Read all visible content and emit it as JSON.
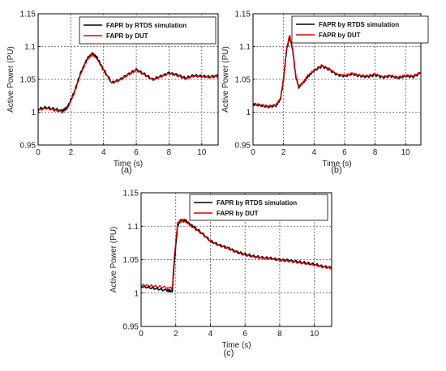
{
  "chart_data": [
    {
      "type": "line",
      "caption": "(a)",
      "xlabel": "Time (s)",
      "ylabel": "Active Power (PU)",
      "xlim": [
        0,
        11
      ],
      "ylim": [
        0.95,
        1.15
      ],
      "xticks": [
        "0",
        "2",
        "4",
        "6",
        "8",
        "10"
      ],
      "yticks": [
        "0.95",
        "1",
        "1.05",
        "1.1",
        "1.15"
      ],
      "grid": true,
      "legend_position": "top-right",
      "series": [
        {
          "name": "FAPR by RTDS simulation",
          "color": "#000000",
          "x": [
            0,
            0.5,
            1,
            1.5,
            1.8,
            2.2,
            2.6,
            3.0,
            3.3,
            3.6,
            4.0,
            4.5,
            5.0,
            5.5,
            6.0,
            6.5,
            7.0,
            7.5,
            8.0,
            8.5,
            9.0,
            9.5,
            10.0,
            10.5,
            11
          ],
          "y": [
            1.005,
            1.007,
            1.005,
            1.002,
            1.008,
            1.03,
            1.06,
            1.082,
            1.09,
            1.083,
            1.065,
            1.045,
            1.05,
            1.058,
            1.065,
            1.058,
            1.05,
            1.055,
            1.06,
            1.057,
            1.052,
            1.056,
            1.055,
            1.054,
            1.056
          ]
        },
        {
          "name": "FAPR by DUT",
          "color": "#e00000",
          "x": [
            0,
            0.5,
            1,
            1.5,
            1.8,
            2.2,
            2.6,
            3.0,
            3.3,
            3.6,
            4.0,
            4.5,
            5.0,
            5.5,
            6.0,
            6.5,
            7.0,
            7.5,
            8.0,
            8.5,
            9.0,
            9.5,
            10.0,
            10.5,
            11
          ],
          "y": [
            1.003,
            1.006,
            1.003,
            1.0,
            1.006,
            1.028,
            1.058,
            1.08,
            1.088,
            1.081,
            1.063,
            1.044,
            1.049,
            1.057,
            1.064,
            1.057,
            1.049,
            1.054,
            1.059,
            1.056,
            1.051,
            1.055,
            1.054,
            1.053,
            1.055
          ]
        }
      ]
    },
    {
      "type": "line",
      "caption": "(b)",
      "xlabel": "Time (s)",
      "ylabel": "Active Power (PU)",
      "xlim": [
        0,
        11
      ],
      "ylim": [
        0.95,
        1.15
      ],
      "xticks": [
        "0",
        "2",
        "4",
        "6",
        "8",
        "10"
      ],
      "yticks": [
        "0.95",
        "1",
        "1.05",
        "1.1",
        "1.15"
      ],
      "grid": true,
      "legend_position": "top-right",
      "series": [
        {
          "name": "FAPR by RTDS simulation",
          "color": "#000000",
          "x": [
            0,
            0.5,
            1,
            1.5,
            1.8,
            2.0,
            2.2,
            2.4,
            2.6,
            2.8,
            3.0,
            3.3,
            3.6,
            4.0,
            4.5,
            5.0,
            5.5,
            6.0,
            6.5,
            7.0,
            7.5,
            8.0,
            8.5,
            9.0,
            9.5,
            10.0,
            10.5,
            11
          ],
          "y": [
            1.012,
            1.01,
            1.008,
            1.01,
            1.02,
            1.05,
            1.095,
            1.115,
            1.095,
            1.055,
            1.038,
            1.045,
            1.055,
            1.063,
            1.07,
            1.065,
            1.057,
            1.055,
            1.058,
            1.055,
            1.054,
            1.057,
            1.053,
            1.055,
            1.052,
            1.055,
            1.054,
            1.06
          ]
        },
        {
          "name": "FAPR by DUT",
          "color": "#e00000",
          "x": [
            0,
            0.5,
            1,
            1.5,
            1.8,
            2.0,
            2.2,
            2.4,
            2.6,
            2.8,
            3.0,
            3.3,
            3.6,
            4.0,
            4.5,
            5.0,
            5.5,
            6.0,
            6.5,
            7.0,
            7.5,
            8.0,
            8.5,
            9.0,
            9.5,
            10.0,
            10.5,
            11
          ],
          "y": [
            1.013,
            1.011,
            1.009,
            1.011,
            1.021,
            1.052,
            1.097,
            1.118,
            1.097,
            1.057,
            1.039,
            1.046,
            1.056,
            1.064,
            1.071,
            1.066,
            1.058,
            1.056,
            1.059,
            1.056,
            1.055,
            1.058,
            1.054,
            1.056,
            1.053,
            1.056,
            1.055,
            1.061
          ]
        }
      ]
    },
    {
      "type": "line",
      "caption": "(c)",
      "xlabel": "Time (s)",
      "ylabel": "Active Power (PU)",
      "xlim": [
        0,
        11
      ],
      "ylim": [
        0.95,
        1.15
      ],
      "xticks": [
        "0",
        "2",
        "4",
        "6",
        "8",
        "10"
      ],
      "yticks": [
        "0.95",
        "1",
        "1.05",
        "1.1",
        "1.15"
      ],
      "grid": true,
      "legend_position": "top-right",
      "series": [
        {
          "name": "FAPR by RTDS simulation",
          "color": "#000000",
          "x": [
            0,
            0.5,
            1.0,
            1.5,
            1.8,
            1.9,
            2.1,
            2.3,
            2.6,
            3.0,
            3.5,
            4.0,
            4.5,
            5.0,
            5.5,
            6.0,
            6.5,
            7.0,
            7.5,
            8.0,
            8.5,
            9.0,
            9.5,
            10.0,
            10.5,
            11
          ],
          "y": [
            1.01,
            1.008,
            1.006,
            1.004,
            1.003,
            1.04,
            1.1,
            1.11,
            1.108,
            1.1,
            1.09,
            1.078,
            1.072,
            1.068,
            1.062,
            1.058,
            1.055,
            1.053,
            1.052,
            1.05,
            1.049,
            1.047,
            1.045,
            1.043,
            1.04,
            1.038
          ]
        },
        {
          "name": "FAPR by DUT",
          "color": "#e00000",
          "x": [
            0,
            0.5,
            1.0,
            1.5,
            1.8,
            1.9,
            2.1,
            2.3,
            2.6,
            3.0,
            3.5,
            4.0,
            4.5,
            5.0,
            5.5,
            6.0,
            6.5,
            7.0,
            7.5,
            8.0,
            8.5,
            9.0,
            9.5,
            10.0,
            10.5,
            11
          ],
          "y": [
            1.012,
            1.011,
            1.01,
            1.008,
            1.008,
            1.05,
            1.105,
            1.108,
            1.106,
            1.098,
            1.089,
            1.077,
            1.071,
            1.067,
            1.061,
            1.057,
            1.054,
            1.052,
            1.051,
            1.049,
            1.048,
            1.046,
            1.044,
            1.042,
            1.039,
            1.037
          ]
        }
      ]
    }
  ]
}
